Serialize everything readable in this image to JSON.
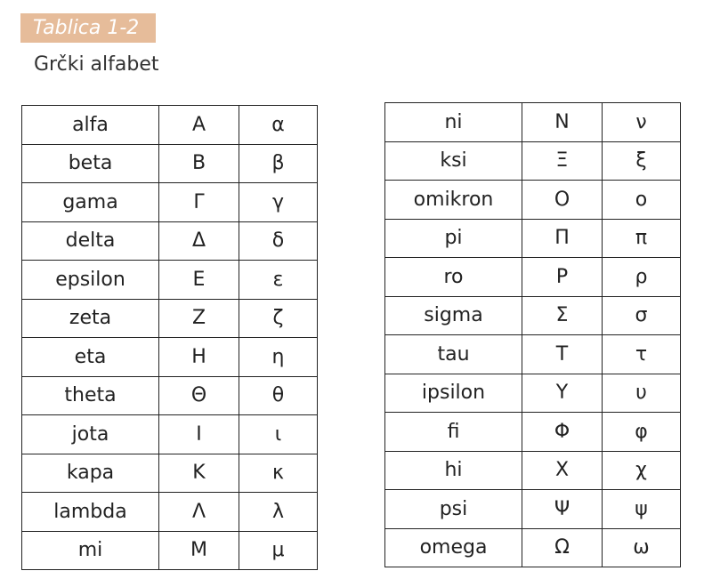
{
  "label": "Tablica 1-2",
  "title": "Grčki alfabet",
  "left": [
    [
      "alfa",
      "Α",
      "α"
    ],
    [
      "beta",
      "Β",
      "β"
    ],
    [
      "gama",
      "Γ",
      "γ"
    ],
    [
      "delta",
      "Δ",
      "δ"
    ],
    [
      "epsilon",
      "Ε",
      "ε"
    ],
    [
      "zeta",
      "Ζ",
      "ζ"
    ],
    [
      "eta",
      "Η",
      "η"
    ],
    [
      "theta",
      "Θ",
      "θ"
    ],
    [
      "jota",
      "Ι",
      "ι"
    ],
    [
      "kapa",
      "Κ",
      "κ"
    ],
    [
      "lambda",
      "Λ",
      "λ"
    ],
    [
      "mi",
      "Μ",
      "μ"
    ]
  ],
  "right": [
    [
      "ni",
      "Ν",
      "ν"
    ],
    [
      "ksi",
      "Ξ",
      "ξ"
    ],
    [
      "omikron",
      "Ο",
      "ο"
    ],
    [
      "pi",
      "Π",
      "π"
    ],
    [
      "ro",
      "Ρ",
      "ρ"
    ],
    [
      "sigma",
      "Σ",
      "σ"
    ],
    [
      "tau",
      "Τ",
      "τ"
    ],
    [
      "ipsilon",
      "Υ",
      "υ"
    ],
    [
      "fi",
      "Φ",
      "φ"
    ],
    [
      "hi",
      "Χ",
      "χ"
    ],
    [
      "psi",
      "Ψ",
      "ψ"
    ],
    [
      "omega",
      "Ω",
      "ω"
    ]
  ]
}
